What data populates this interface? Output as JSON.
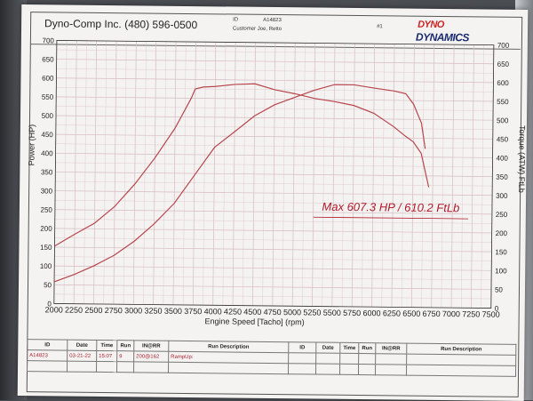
{
  "header": {
    "company": "Dyno-Comp Inc. (480) 596-0500",
    "id_label": "ID",
    "id_value": "A14823",
    "customer": "Customer Joe, Retto",
    "run_no": "#1",
    "logo_line1": "DYNO",
    "logo_line2": "DYNAMICS"
  },
  "colors": {
    "curve": "#b8464e",
    "grid": "#d6bcc2",
    "annotation": "#b0182a",
    "axis": "#333333"
  },
  "chart_data": {
    "type": "line",
    "xlabel": "Engine Speed [Tacho] (rpm)",
    "ylabel_left": "Power (HP)",
    "ylabel_right": "Torque (ATW) FtLb",
    "xlim": [
      2000,
      7500
    ],
    "ylim": [
      0,
      700
    ],
    "x_ticks": [
      2000,
      2250,
      2500,
      2750,
      3000,
      3250,
      3500,
      3750,
      4000,
      4250,
      4500,
      4750,
      5000,
      5250,
      5500,
      5750,
      6000,
      6250,
      6500,
      6750,
      7000,
      7250,
      7500
    ],
    "y_ticks": [
      0,
      50,
      100,
      150,
      200,
      250,
      300,
      350,
      400,
      450,
      500,
      550,
      600,
      650,
      700
    ],
    "y_right_ticks": [
      0,
      50,
      100,
      150,
      200,
      250,
      300,
      350,
      400,
      450,
      500,
      550,
      600,
      650,
      700
    ],
    "annotation": "Max 607.3 HP  / 610.2 FtLb",
    "series": [
      {
        "name": "Torque",
        "x": [
          2000,
          2250,
          2500,
          2750,
          3000,
          3250,
          3500,
          3700,
          3750,
          3850,
          4000,
          4250,
          4500,
          4750,
          5000,
          5250,
          5500,
          5750,
          6000,
          6250,
          6400,
          6500,
          6600,
          6700
        ],
        "y": [
          153,
          185,
          215,
          260,
          320,
          390,
          470,
          550,
          575,
          580,
          582,
          588,
          590,
          575,
          565,
          553,
          545,
          535,
          515,
          480,
          455,
          440,
          410,
          320
        ]
      },
      {
        "name": "Power",
        "x": [
          2000,
          2250,
          2500,
          2750,
          3000,
          3250,
          3500,
          3750,
          4000,
          4250,
          4500,
          4750,
          5000,
          5250,
          5500,
          5750,
          6000,
          6250,
          6400,
          6500,
          6600,
          6650
        ],
        "y": [
          58,
          78,
          102,
          130,
          168,
          215,
          270,
          345,
          420,
          462,
          505,
          535,
          555,
          575,
          590,
          590,
          582,
          575,
          568,
          540,
          490,
          422
        ]
      }
    ]
  },
  "table": {
    "headers_left": [
      "ID",
      "Date",
      "Time",
      "Run",
      "IN@RR",
      "Run Description"
    ],
    "headers_right": [
      "ID",
      "Date",
      "Time",
      "Run",
      "IN@RR",
      "Run Description"
    ],
    "row1": [
      "A14823",
      "03-21-22",
      "15:07",
      "9",
      "200@162",
      "RampUp:"
    ]
  }
}
